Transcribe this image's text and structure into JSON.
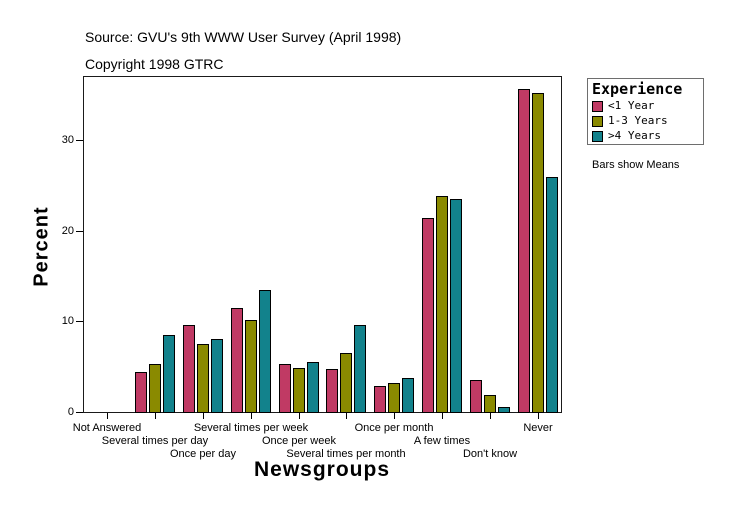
{
  "header": {
    "source_line": "Source: GVU's 9th WWW User Survey (April 1998)",
    "copyright_line": "Copyright 1998 GTRC"
  },
  "legend": {
    "title": "Experience",
    "entries": [
      {
        "label": "<1 Year",
        "color": "#C03A64"
      },
      {
        "label": "1-3 Years",
        "color": "#8A8A00"
      },
      {
        "label": ">4 Years",
        "color": "#12828C"
      }
    ],
    "note": "Bars show Means"
  },
  "chart_data": {
    "type": "bar",
    "title": "",
    "xlabel": "Newsgroups",
    "ylabel": "Percent",
    "categories": [
      "Not Answered",
      "Several times per day",
      "Once per day",
      "Several times per week",
      "Once per week",
      "Several times per month",
      "Once per month",
      "A few times",
      "Don't know",
      "Never"
    ],
    "series": [
      {
        "name": "<1 Year",
        "color": "#C03A64",
        "values": [
          0,
          4.5,
          9.7,
          11.6,
          5.4,
          4.9,
          3.0,
          21.5,
          3.6,
          35.8
        ]
      },
      {
        "name": "1-3 Years",
        "color": "#8A8A00",
        "values": [
          0,
          5.4,
          7.6,
          10.3,
          5.0,
          6.6,
          3.3,
          24.0,
          2.0,
          35.3
        ]
      },
      {
        "name": ">4 Years",
        "color": "#12828C",
        "values": [
          0,
          8.6,
          8.2,
          13.6,
          5.6,
          9.7,
          3.9,
          23.6,
          0.7,
          26.0
        ]
      }
    ],
    "yticks": [
      0,
      10,
      20,
      30
    ],
    "ylim": [
      0,
      37.2
    ],
    "grid": false,
    "legend_position": "outside-top-right",
    "bars_annotation": "Bars show Means"
  }
}
